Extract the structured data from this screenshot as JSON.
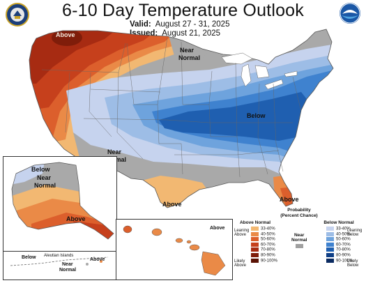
{
  "title": "6-10 Day Temperature Outlook",
  "valid": {
    "label": "Valid:",
    "value": "August 27 - 31, 2025"
  },
  "issued": {
    "label": "Issued:",
    "value": "August 21, 2025"
  },
  "colors": {
    "above": [
      "#f2b872",
      "#ea8a47",
      "#dc5f2c",
      "#c6401c",
      "#a72b12",
      "#7f1d0a",
      "#5a1204"
    ],
    "below": [
      "#c6d3ee",
      "#9dbde6",
      "#6ea3dd",
      "#3f82cf",
      "#1f5fb0",
      "#0f3f86",
      "#0a2a60"
    ],
    "normal": "#a0a0a0",
    "land_gray": "#a9a9a9",
    "water": "#ffffff"
  },
  "map_labels": {
    "above_nw": "Above",
    "near_normal_ne_1": "Near",
    "near_normal_ne_2": "Normal",
    "below_center": "Below",
    "near_normal_sw_1": "Near",
    "near_normal_sw_2": "Normal",
    "above_tx": "Above",
    "above_fl": "Above"
  },
  "alaska": {
    "below": "Below",
    "near_1": "Near",
    "near_2": "Normal",
    "above": "Above",
    "aleutian_label": "Aleutian Islands",
    "below_aleut": "Below",
    "above_aleut": "Above",
    "near_aleut_1": "Near",
    "near_aleut_2": "Normal"
  },
  "hawaii": {
    "above": "Above"
  },
  "legend": {
    "title_1": "Probability",
    "title_2": "(Percent Chance)",
    "above_head": "Above Normal",
    "below_head": "Below Normal",
    "near_head_1": "Near",
    "near_head_2": "Normal",
    "ranges": [
      "33-40%",
      "40-50%",
      "50-60%",
      "60-70%",
      "70-80%",
      "80-90%",
      "90-100%"
    ],
    "leaning_above_1": "Leaning",
    "leaning_above_2": "Above",
    "likely_above_1": "Likely",
    "likely_above_2": "Above",
    "leaning_below_1": "Leaning",
    "leaning_below_2": "Below",
    "likely_below_1": "Likely",
    "likely_below_2": "Below"
  }
}
